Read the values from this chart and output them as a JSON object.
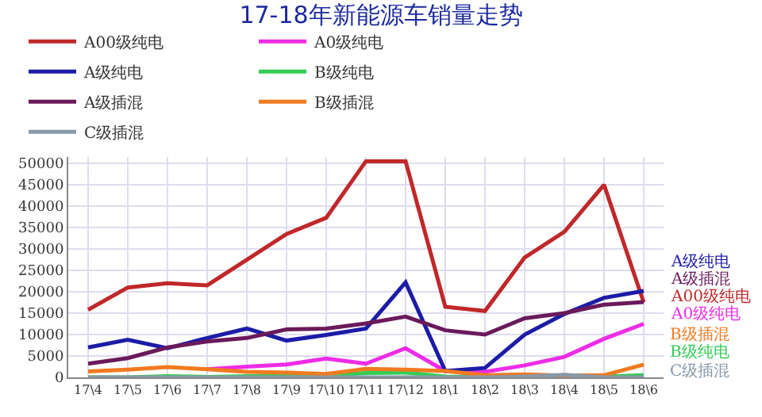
{
  "chart_data": {
    "type": "line",
    "title": "17-18年新能源车销量走势",
    "categories": [
      "17\\4",
      "17\\5",
      "17\\6",
      "17\\7",
      "17\\8",
      "17\\9",
      "17\\10",
      "17\\11",
      "17\\12",
      "18\\1",
      "18\\2",
      "18\\3",
      "18\\4",
      "18\\5",
      "18\\6"
    ],
    "series": [
      {
        "name": "A00级纯电",
        "color": "#c0282a",
        "values": [
          15800,
          21000,
          22000,
          21500,
          27500,
          33500,
          37300,
          50500,
          50500,
          16500,
          15500,
          28000,
          34000,
          45000,
          17500
        ]
      },
      {
        "name": "A0级纯电",
        "color": "#ee2ce6",
        "values": [
          null,
          null,
          null,
          1900,
          2500,
          3000,
          4400,
          3200,
          6800,
          1500,
          1300,
          2800,
          4800,
          9000,
          12500
        ]
      },
      {
        "name": "A级纯电",
        "color": "#1c1ca8",
        "values": [
          7000,
          8800,
          6800,
          9200,
          11400,
          8600,
          9900,
          11400,
          22200,
          1500,
          2200,
          10000,
          14800,
          18600,
          20200
        ]
      },
      {
        "name": "B级纯电",
        "color": "#33cc55",
        "values": [
          0,
          0,
          300,
          100,
          300,
          300,
          400,
          1000,
          1100,
          200,
          100,
          100,
          200,
          200,
          500
        ]
      },
      {
        "name": "A级插混",
        "color": "#6a1a5a",
        "values": [
          3200,
          4500,
          7000,
          8400,
          9200,
          11200,
          11400,
          12600,
          14200,
          11000,
          10000,
          13800,
          15000,
          17000,
          17600
        ]
      },
      {
        "name": "B级插混",
        "color": "#f07a20",
        "values": [
          1400,
          1800,
          2400,
          1900,
          1300,
          1100,
          800,
          2000,
          1800,
          1500,
          500,
          700,
          400,
          500,
          3000
        ]
      },
      {
        "name": "C级插混",
        "color": "#8899aa",
        "values": [
          0,
          0,
          0,
          0,
          0,
          0,
          0,
          0,
          0,
          0,
          0,
          200,
          600,
          0,
          0
        ]
      }
    ],
    "ylim": [
      0,
      51500
    ],
    "yticks": [
      0,
      5000,
      10000,
      15000,
      20000,
      25000,
      30000,
      35000,
      40000,
      45000,
      50000
    ],
    "grid": true,
    "legend": "top",
    "marker": "none",
    "line_style": "solid"
  }
}
